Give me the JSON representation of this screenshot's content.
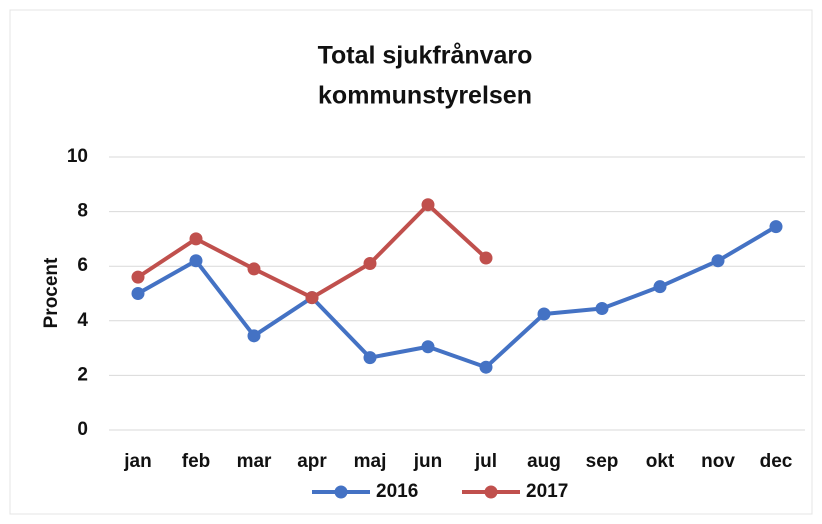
{
  "chart_data": {
    "type": "line",
    "title": [
      "Total sjukfrånvaro",
      "kommunstyrelsen"
    ],
    "y_label": "Procent",
    "categories": [
      "jan",
      "feb",
      "mar",
      "apr",
      "maj",
      "jun",
      "jul",
      "aug",
      "sep",
      "okt",
      "nov",
      "dec"
    ],
    "series": [
      {
        "name": "2016",
        "color": "#4472c4",
        "values": [
          5.0,
          6.2,
          3.45,
          4.85,
          2.65,
          3.05,
          2.3,
          4.25,
          4.45,
          5.25,
          6.2,
          7.45
        ]
      },
      {
        "name": "2017",
        "color": "#c0504d",
        "values": [
          5.6,
          7.0,
          5.9,
          4.85,
          6.1,
          8.25,
          6.3,
          null,
          null,
          null,
          null,
          null
        ]
      }
    ],
    "ylim": [
      0,
      10
    ],
    "yticks": [
      0,
      2,
      4,
      6,
      8,
      10
    ],
    "grid": true,
    "legend": "bottom"
  }
}
